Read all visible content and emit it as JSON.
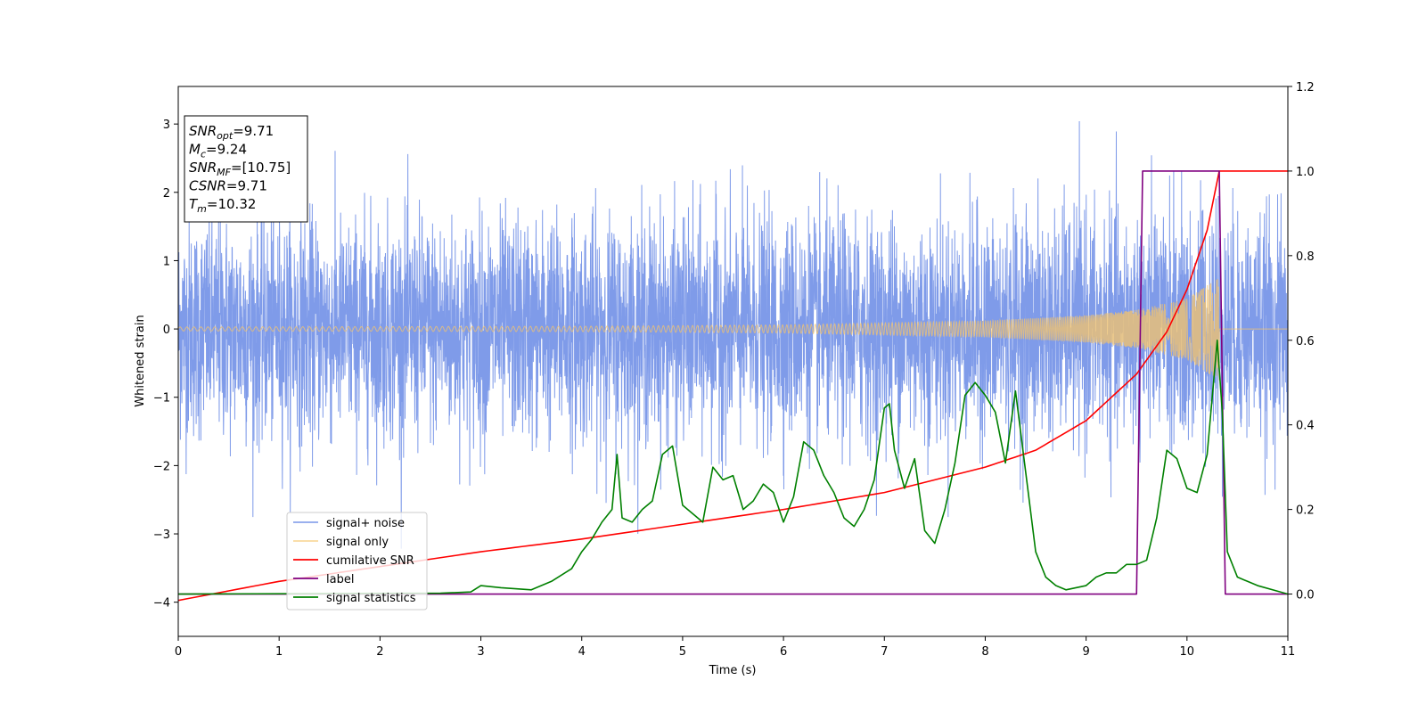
{
  "chart_data": {
    "type": "line",
    "xlabel": "Time (s)",
    "ylabel": "Whitened strain",
    "xlim": [
      0,
      11
    ],
    "ylim_left": [
      -4.5,
      3.55
    ],
    "ylim_right": [
      -0.1,
      1.2
    ],
    "x_ticks": [
      "0",
      "1",
      "2",
      "3",
      "4",
      "5",
      "6",
      "7",
      "8",
      "9",
      "10",
      "11"
    ],
    "y_ticks_left": [
      "−4",
      "−3",
      "−2",
      "−1",
      "0",
      "1",
      "2",
      "3"
    ],
    "y_ticks_right": [
      "0.0",
      "0.2",
      "0.4",
      "0.6",
      "0.8",
      "1.0",
      "1.2"
    ],
    "grid": false,
    "legend_position": "lower-left",
    "info_box": {
      "lines": [
        {
          "sym": "SNR",
          "sub": "opt",
          "text": "=9.71"
        },
        {
          "sym": "M",
          "sub": "c",
          "text": "=9.24"
        },
        {
          "sym": "SNR",
          "sub": "MF",
          "text": "=[10.75]"
        },
        {
          "sym": "CSNR",
          "sub": "",
          "text": "=9.71"
        },
        {
          "sym": "T",
          "sub": "m",
          "text": "=10.32"
        }
      ]
    },
    "series": [
      {
        "name": "signal+ noise",
        "color": "#7896e8",
        "axis": "left",
        "style": "noise",
        "noise_std": 0.8,
        "approx_range": [
          -4.17,
          3.2
        ]
      },
      {
        "name": "signal only",
        "color": "#f5c46a",
        "axis": "left",
        "style": "chirp",
        "merger_time": 10.32,
        "amplitude_envelope": [
          [
            0,
            0.03
          ],
          [
            4,
            0.04
          ],
          [
            6,
            0.06
          ],
          [
            8,
            0.12
          ],
          [
            9,
            0.2
          ],
          [
            9.5,
            0.28
          ],
          [
            10,
            0.45
          ],
          [
            10.32,
            0.75
          ]
        ]
      },
      {
        "name": "cumilative SNR",
        "color": "#ff0000",
        "axis": "right",
        "x": [
          0,
          1,
          2,
          3,
          4,
          5,
          6,
          7,
          8,
          8.5,
          9,
          9.5,
          9.8,
          10,
          10.2,
          10.32,
          11
        ],
        "y": [
          -0.015,
          0.03,
          0.065,
          0.1,
          0.13,
          0.165,
          0.2,
          0.24,
          0.3,
          0.34,
          0.41,
          0.52,
          0.62,
          0.72,
          0.86,
          1.0,
          1.0
        ]
      },
      {
        "name": "label",
        "color": "#800080",
        "axis": "right",
        "x": [
          0,
          9.5,
          9.56,
          10.32,
          10.38,
          11
        ],
        "y": [
          0,
          0,
          1,
          1,
          0,
          0
        ]
      },
      {
        "name": "signal statistics",
        "color": "#008000",
        "axis": "right",
        "x": [
          0,
          2.6,
          2.9,
          3.0,
          3.2,
          3.5,
          3.7,
          3.9,
          4.0,
          4.1,
          4.2,
          4.3,
          4.35,
          4.4,
          4.5,
          4.6,
          4.7,
          4.8,
          4.9,
          5.0,
          5.1,
          5.2,
          5.3,
          5.4,
          5.5,
          5.6,
          5.7,
          5.8,
          5.9,
          6.0,
          6.1,
          6.2,
          6.3,
          6.4,
          6.5,
          6.6,
          6.7,
          6.8,
          6.9,
          7.0,
          7.05,
          7.1,
          7.2,
          7.3,
          7.4,
          7.5,
          7.6,
          7.7,
          7.8,
          7.9,
          8.0,
          8.1,
          8.2,
          8.3,
          8.4,
          8.5,
          8.6,
          8.7,
          8.8,
          9.0,
          9.1,
          9.2,
          9.3,
          9.4,
          9.5,
          9.6,
          9.7,
          9.8,
          9.9,
          10.0,
          10.1,
          10.2,
          10.3,
          10.35,
          10.4,
          10.5,
          10.7,
          11
        ],
        "y": [
          0,
          0.002,
          0.005,
          0.02,
          0.015,
          0.01,
          0.03,
          0.06,
          0.1,
          0.13,
          0.17,
          0.2,
          0.33,
          0.18,
          0.17,
          0.2,
          0.22,
          0.33,
          0.35,
          0.21,
          0.19,
          0.17,
          0.3,
          0.27,
          0.28,
          0.2,
          0.22,
          0.26,
          0.24,
          0.17,
          0.23,
          0.36,
          0.34,
          0.28,
          0.24,
          0.18,
          0.16,
          0.2,
          0.27,
          0.44,
          0.45,
          0.34,
          0.25,
          0.32,
          0.15,
          0.12,
          0.2,
          0.31,
          0.47,
          0.5,
          0.47,
          0.43,
          0.31,
          0.48,
          0.29,
          0.1,
          0.04,
          0.02,
          0.01,
          0.02,
          0.04,
          0.05,
          0.05,
          0.07,
          0.07,
          0.08,
          0.18,
          0.34,
          0.32,
          0.25,
          0.24,
          0.33,
          0.6,
          0.43,
          0.1,
          0.04,
          0.02,
          0.0
        ]
      }
    ]
  }
}
